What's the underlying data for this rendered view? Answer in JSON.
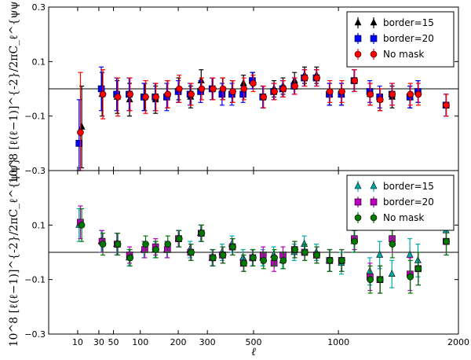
{
  "chart_data": [
    {
      "type": "scatter",
      "panel": "top",
      "xlabel": "",
      "ylabel": "10^8 [ℓ(ℓ−1)]^{-2}/2πC_ℓ^{ψψ}",
      "xscale": "sqrt",
      "xlim": [
        0,
        2000
      ],
      "ylim": [
        -0.3,
        0.3
      ],
      "yticks": [
        "0.3",
        "0.1",
        "−0.1",
        "−0.3"
      ],
      "ytick_values": [
        0.3,
        0.1,
        -0.1,
        -0.3
      ],
      "xticks": [],
      "zero_line": true,
      "legend": "top-right",
      "series": [
        {
          "name": "border=15",
          "marker": "triangle",
          "color": "#000000",
          "x": [
            13,
            34,
            56,
            78,
            110,
            136,
            168,
            201,
            240,
            277,
            320,
            360,
            402,
            452,
            496,
            548,
            605,
            654,
            720,
            780,
            855,
            940,
            1022,
            1113,
            1230,
            1307,
            1405,
            1556,
            1626,
            1882
          ],
          "y": [
            -0.14,
            -0.02,
            -0.03,
            -0.04,
            -0.03,
            -0.04,
            -0.02,
            0.0,
            -0.03,
            0.03,
            0.0,
            0.0,
            -0.01,
            0.02,
            0.03,
            -0.03,
            0.0,
            0.01,
            0.03,
            0.05,
            0.05,
            -0.02,
            -0.02,
            0.03,
            -0.02,
            -0.04,
            -0.03,
            -0.03,
            -0.01,
            -0.06
          ],
          "err": [
            0.15,
            0.08,
            0.06,
            0.06,
            0.05,
            0.05,
            0.05,
            0.04,
            0.04,
            0.04,
            0.04,
            0.04,
            0.04,
            0.03,
            0.03,
            0.04,
            0.03,
            0.03,
            0.03,
            0.03,
            0.03,
            0.04,
            0.04,
            0.04,
            0.04,
            0.04,
            0.04,
            0.04,
            0.04,
            0.04
          ]
        },
        {
          "name": "border=20",
          "marker": "square",
          "color": "#0000ff",
          "x": [
            11,
            33,
            55,
            77,
            108,
            135,
            166,
            200,
            238,
            275,
            318,
            358,
            400,
            450,
            494,
            546,
            603,
            652,
            718,
            778,
            853,
            938,
            1020,
            1111,
            1228,
            1305,
            1403,
            1554,
            1624,
            1880
          ],
          "y": [
            -0.2,
            -0.0,
            -0.02,
            -0.02,
            -0.03,
            -0.03,
            -0.03,
            -0.01,
            -0.02,
            -0.01,
            0.0,
            -0.02,
            -0.02,
            -0.02,
            0.03,
            -0.03,
            -0.01,
            0.0,
            0.01,
            0.04,
            0.04,
            -0.02,
            -0.02,
            0.03,
            -0.01,
            -0.03,
            -0.02,
            -0.03,
            -0.01,
            -0.06
          ],
          "err": [
            0.16,
            0.08,
            0.06,
            0.06,
            0.05,
            0.05,
            0.05,
            0.04,
            0.04,
            0.04,
            0.04,
            0.04,
            0.04,
            0.03,
            0.03,
            0.04,
            0.03,
            0.03,
            0.03,
            0.03,
            0.03,
            0.04,
            0.04,
            0.04,
            0.04,
            0.04,
            0.04,
            0.04,
            0.04,
            0.04
          ]
        },
        {
          "name": "No mask",
          "marker": "circle",
          "color": "#ff0000",
          "x": [
            12,
            35,
            57,
            79,
            112,
            137,
            169,
            203,
            242,
            279,
            322,
            362,
            404,
            454,
            498,
            550,
            607,
            656,
            722,
            782,
            857,
            942,
            1024,
            1115,
            1232,
            1309,
            1407,
            1558,
            1628,
            1884
          ],
          "y": [
            -0.16,
            -0.02,
            -0.03,
            -0.02,
            -0.03,
            -0.03,
            -0.02,
            0.0,
            -0.02,
            0.0,
            0.0,
            0.0,
            -0.01,
            0.0,
            0.02,
            -0.03,
            -0.01,
            0.0,
            0.01,
            0.04,
            0.04,
            -0.01,
            -0.01,
            0.03,
            -0.02,
            -0.04,
            -0.02,
            -0.02,
            -0.02,
            -0.06
          ],
          "err": [
            0.22,
            0.09,
            0.07,
            0.06,
            0.06,
            0.05,
            0.05,
            0.05,
            0.04,
            0.04,
            0.04,
            0.04,
            0.04,
            0.04,
            0.03,
            0.04,
            0.03,
            0.03,
            0.03,
            0.03,
            0.03,
            0.04,
            0.04,
            0.04,
            0.04,
            0.04,
            0.04,
            0.04,
            0.04,
            0.04
          ]
        }
      ]
    },
    {
      "type": "scatter",
      "panel": "bottom",
      "xlabel": "ℓ",
      "ylabel": "10^8 [ℓ(ℓ−1)]^{-2}/2πC_ℓ^{ψψ}",
      "xscale": "sqrt",
      "xlim": [
        0,
        2000
      ],
      "ylim": [
        -0.3,
        0.3
      ],
      "yticks": [
        "0.1",
        "−0.1",
        "−0.3"
      ],
      "ytick_values": [
        0.1,
        -0.1,
        -0.3
      ],
      "xticks": [
        "10",
        "30",
        "50",
        "100",
        "200",
        "300",
        "500",
        "1000",
        "2000"
      ],
      "xtick_values": [
        10,
        30,
        50,
        100,
        200,
        300,
        500,
        1000,
        2000
      ],
      "zero_line": true,
      "legend": "top-right",
      "series": [
        {
          "name": "border=15",
          "marker": "triangle",
          "color": "#00aaaa",
          "x": [
            11,
            33,
            55,
            77,
            108,
            135,
            166,
            200,
            238,
            275,
            318,
            358,
            400,
            450,
            494,
            546,
            603,
            652,
            718,
            778,
            853,
            938,
            1020,
            1111,
            1228,
            1305,
            1403,
            1554,
            1624,
            1880
          ],
          "y": [
            0.1,
            0.04,
            0.03,
            -0.02,
            0.01,
            0.01,
            0.01,
            0.05,
            0.01,
            0.07,
            -0.02,
            0.0,
            0.03,
            -0.02,
            -0.02,
            -0.02,
            -0.01,
            -0.03,
            0.0,
            0.03,
            0.0,
            -0.03,
            -0.04,
            0.04,
            -0.07,
            -0.01,
            -0.08,
            -0.01,
            -0.03,
            0.08
          ],
          "err": [
            0.06,
            0.04,
            0.04,
            0.03,
            0.03,
            0.03,
            0.03,
            0.03,
            0.03,
            0.03,
            0.03,
            0.03,
            0.03,
            0.03,
            0.03,
            0.03,
            0.03,
            0.03,
            0.03,
            0.03,
            0.03,
            0.04,
            0.04,
            0.04,
            0.05,
            0.05,
            0.05,
            0.06,
            0.06,
            0.05
          ]
        },
        {
          "name": "border=20",
          "marker": "square",
          "color": "#bb00bb",
          "x": [
            12,
            34,
            56,
            78,
            110,
            136,
            168,
            201,
            240,
            277,
            320,
            360,
            402,
            452,
            496,
            548,
            605,
            654,
            720,
            780,
            855,
            940,
            1022,
            1113,
            1230,
            1307,
            1405,
            1556,
            1626,
            1882
          ],
          "y": [
            0.11,
            0.04,
            0.03,
            -0.01,
            0.01,
            0.02,
            0.01,
            0.05,
            0.0,
            0.07,
            -0.02,
            -0.01,
            0.02,
            -0.04,
            -0.02,
            -0.01,
            -0.04,
            -0.01,
            0.01,
            0.0,
            -0.01,
            -0.03,
            -0.03,
            0.05,
            -0.09,
            -0.1,
            0.05,
            -0.08,
            -0.06,
            0.04
          ],
          "err": [
            0.06,
            0.04,
            0.04,
            0.03,
            0.03,
            0.03,
            0.03,
            0.03,
            0.03,
            0.03,
            0.03,
            0.03,
            0.03,
            0.03,
            0.03,
            0.03,
            0.03,
            0.03,
            0.03,
            0.03,
            0.03,
            0.04,
            0.04,
            0.04,
            0.05,
            0.05,
            0.05,
            0.06,
            0.06,
            0.05
          ]
        },
        {
          "name": "No mask",
          "marker": "circle",
          "color": "#007700",
          "x": [
            13,
            35,
            57,
            79,
            112,
            137,
            169,
            203,
            242,
            279,
            322,
            362,
            404,
            454,
            498,
            550,
            607,
            656,
            722,
            782,
            857,
            942,
            1024,
            1115,
            1232,
            1309,
            1407,
            1558,
            1628,
            1884
          ],
          "y": [
            0.1,
            0.03,
            0.03,
            -0.02,
            0.03,
            0.01,
            0.03,
            0.05,
            0.0,
            0.07,
            -0.02,
            -0.01,
            0.02,
            -0.04,
            -0.02,
            -0.03,
            -0.02,
            -0.03,
            0.01,
            0.0,
            -0.01,
            -0.03,
            -0.03,
            0.04,
            -0.1,
            -0.1,
            0.03,
            -0.09,
            -0.06,
            0.04
          ],
          "err": [
            0.06,
            0.04,
            0.04,
            0.03,
            0.03,
            0.03,
            0.03,
            0.03,
            0.03,
            0.03,
            0.03,
            0.03,
            0.03,
            0.03,
            0.03,
            0.03,
            0.03,
            0.03,
            0.03,
            0.03,
            0.03,
            0.04,
            0.04,
            0.04,
            0.05,
            0.05,
            0.05,
            0.06,
            0.06,
            0.05
          ]
        }
      ]
    }
  ]
}
